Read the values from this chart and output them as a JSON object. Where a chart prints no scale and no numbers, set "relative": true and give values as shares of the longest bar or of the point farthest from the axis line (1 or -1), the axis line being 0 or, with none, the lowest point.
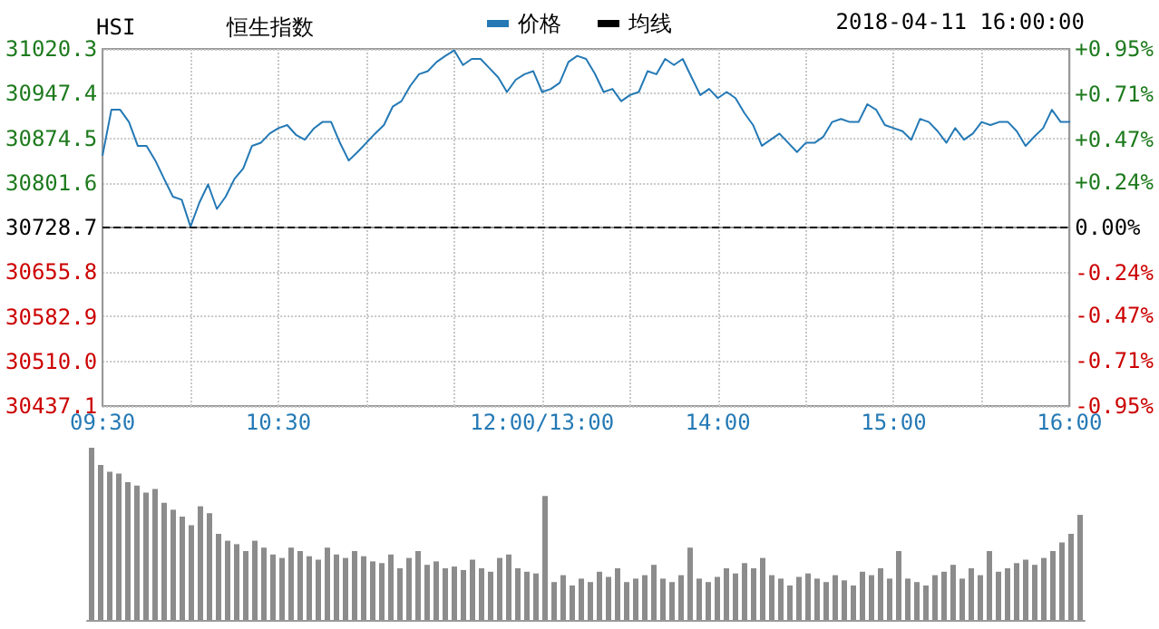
{
  "chart_data": [
    {
      "type": "line",
      "title": "恒生指数",
      "subtitle": "HSI",
      "annotations": [
        "2018-04-11 16:00:00"
      ],
      "categories": [
        "09:30",
        null,
        null,
        null,
        null,
        null,
        null,
        null,
        null,
        null,
        null,
        null,
        null,
        null,
        null,
        null,
        null,
        null,
        null,
        null,
        "10:30",
        null,
        null,
        null,
        null,
        null,
        null,
        null,
        null,
        null,
        null,
        null,
        null,
        null,
        null,
        null,
        null,
        null,
        null,
        null,
        null,
        null,
        null,
        null,
        null,
        null,
        null,
        null,
        null,
        null,
        "12:00/13:00",
        null,
        null,
        null,
        null,
        null,
        null,
        null,
        null,
        null,
        null,
        null,
        null,
        null,
        null,
        null,
        null,
        null,
        null,
        null,
        "14:00",
        null,
        null,
        null,
        null,
        null,
        null,
        null,
        null,
        null,
        null,
        null,
        null,
        null,
        null,
        null,
        null,
        null,
        null,
        null,
        "15:00",
        null,
        null,
        null,
        null,
        null,
        null,
        null,
        null,
        null,
        null,
        null,
        null,
        null,
        null,
        null,
        null,
        null,
        null,
        null,
        "16:00"
      ],
      "series": [
        {
          "name": "价格",
          "color": "#2479b5",
          "values": [
            30847,
            30921,
            30921,
            30901,
            30862,
            30862,
            30838,
            30808,
            30779,
            30774,
            30730,
            30769,
            30799,
            30759,
            30779,
            30808,
            30825,
            30862,
            30867,
            30882,
            30891,
            30896,
            30880,
            30872,
            30890,
            30901,
            30901,
            30867,
            30838,
            30852,
            30867,
            30882,
            30896,
            30926,
            30935,
            30960,
            30979,
            30984,
            30999,
            31009,
            31018,
            30994,
            31004,
            31004,
            30989,
            30974,
            30950,
            30970,
            30979,
            30984,
            30950,
            30955,
            30965,
            30999,
            31009,
            31004,
            30980,
            30950,
            30955,
            30935,
            30945,
            30950,
            30984,
            30979,
            31004,
            30994,
            31004,
            30974,
            30945,
            30955,
            30940,
            30950,
            30940,
            30916,
            30896,
            30862,
            30872,
            30882,
            30867,
            30852,
            30867,
            30867,
            30877,
            30901,
            30906,
            30901,
            30901,
            30930,
            30921,
            30896,
            30891,
            30886,
            30872,
            30906,
            30901,
            30886,
            30867,
            30891,
            30872,
            30882,
            30901,
            30896,
            30901,
            30901,
            30886,
            30862,
            30877,
            30891,
            30921,
            30901,
            30901
          ]
        },
        {
          "name": "均线",
          "color": "#000000",
          "values": [
            null,
            null,
            null,
            null,
            null,
            null,
            null,
            null,
            null,
            null,
            null,
            null,
            null,
            null,
            null,
            null,
            null,
            null,
            null,
            null,
            null,
            null,
            null,
            null,
            null,
            null,
            null,
            null,
            null,
            null,
            null,
            null,
            null,
            null,
            null,
            null,
            null,
            null,
            null,
            null,
            null,
            null,
            null,
            null,
            null,
            null,
            null,
            null,
            null,
            null,
            null,
            null,
            null,
            null,
            null,
            null,
            null,
            null,
            null,
            null,
            null,
            null,
            null,
            null,
            null,
            null,
            null,
            null,
            null,
            null,
            null,
            null,
            null,
            null,
            null,
            null,
            null,
            null,
            null,
            null,
            null,
            null,
            null,
            null,
            null,
            null,
            null,
            null,
            null,
            null,
            null,
            null,
            null,
            null,
            null,
            null,
            null,
            null,
            null,
            null,
            null,
            null,
            null,
            null,
            null,
            null,
            null,
            null,
            null,
            null,
            null
          ]
        }
      ],
      "ylim": [
        30437.1,
        31020.3
      ],
      "yticks": [
        30437.1,
        {
          "value": 30510,
          "label": "30510.0"
        },
        30582.9,
        30655.8,
        30728.7,
        30801.6,
        30874.5,
        30947.4,
        31020.3
      ],
      "y2lim": [
        -0.95,
        0.95
      ],
      "y2ticks": [
        {
          "value": -0.95,
          "label": "-0.95%"
        },
        {
          "value": -0.71,
          "label": "-0.71%"
        },
        {
          "value": -0.47,
          "label": "-0.47%"
        },
        {
          "value": -0.24,
          "label": "-0.24%"
        },
        {
          "value": 0,
          "label": "0.00%"
        },
        {
          "value": 0.24,
          "label": "+0.24%"
        },
        {
          "value": 0.47,
          "label": "+0.47%"
        },
        {
          "value": 0.71,
          "label": "+0.71%"
        },
        {
          "value": 0.95,
          "label": "+0.95%"
        }
      ],
      "ref_lines": [
        {
          "axis": "y",
          "value": 30728.7,
          "color": "#000000",
          "line_style": "dashed"
        }
      ],
      "grid": true,
      "legend": "top",
      "marker": "none",
      "line_style": "solid"
    },
    {
      "type": "bar",
      "relative": true,
      "color": "#8c8c8c",
      "tick_labels": false,
      "categories": [
        null,
        null,
        null,
        null,
        null,
        null,
        null,
        null,
        null,
        null,
        null,
        null,
        null,
        null,
        null,
        null,
        null,
        null,
        null,
        null,
        null,
        null,
        null,
        null,
        null,
        null,
        null,
        null,
        null,
        null,
        null,
        null,
        null,
        null,
        null,
        null,
        null,
        null,
        null,
        null,
        null,
        null,
        null,
        null,
        null,
        null,
        null,
        null,
        null,
        null,
        null,
        null,
        null,
        null,
        null,
        null,
        null,
        null,
        null,
        null,
        null,
        null,
        null,
        null,
        null,
        null,
        null,
        null,
        null,
        null,
        null,
        null,
        null,
        null,
        null,
        null,
        null,
        null,
        null,
        null,
        null,
        null,
        null,
        null,
        null,
        null,
        null,
        null,
        null,
        null,
        null,
        null,
        null,
        null,
        null,
        null,
        null,
        null,
        null,
        null,
        null,
        null,
        null,
        null,
        null,
        null,
        null,
        null,
        null,
        null
      ],
      "values": [
        1.0,
        0.9,
        0.86,
        0.85,
        0.8,
        0.78,
        0.74,
        0.76,
        0.68,
        0.64,
        0.6,
        0.55,
        0.66,
        0.62,
        0.5,
        0.46,
        0.44,
        0.4,
        0.46,
        0.42,
        0.38,
        0.36,
        0.42,
        0.4,
        0.37,
        0.35,
        0.42,
        0.38,
        0.36,
        0.4,
        0.37,
        0.34,
        0.33,
        0.38,
        0.3,
        0.36,
        0.4,
        0.32,
        0.34,
        0.3,
        0.31,
        0.29,
        0.35,
        0.3,
        0.28,
        0.36,
        0.38,
        0.3,
        0.28,
        0.27,
        0.72,
        0.22,
        0.26,
        0.2,
        0.24,
        0.22,
        0.28,
        0.25,
        0.3,
        0.22,
        0.24,
        0.26,
        0.32,
        0.24,
        0.22,
        0.26,
        0.42,
        0.24,
        0.22,
        0.25,
        0.3,
        0.27,
        0.33,
        0.3,
        0.36,
        0.26,
        0.24,
        0.2,
        0.25,
        0.27,
        0.24,
        0.22,
        0.26,
        0.23,
        0.2,
        0.28,
        0.26,
        0.3,
        0.24,
        0.4,
        0.24,
        0.22,
        0.2,
        0.26,
        0.28,
        0.32,
        0.24,
        0.3,
        0.26,
        0.4,
        0.28,
        0.3,
        0.33,
        0.35,
        0.32,
        0.36,
        0.4,
        0.45,
        0.5,
        0.61
      ]
    }
  ]
}
